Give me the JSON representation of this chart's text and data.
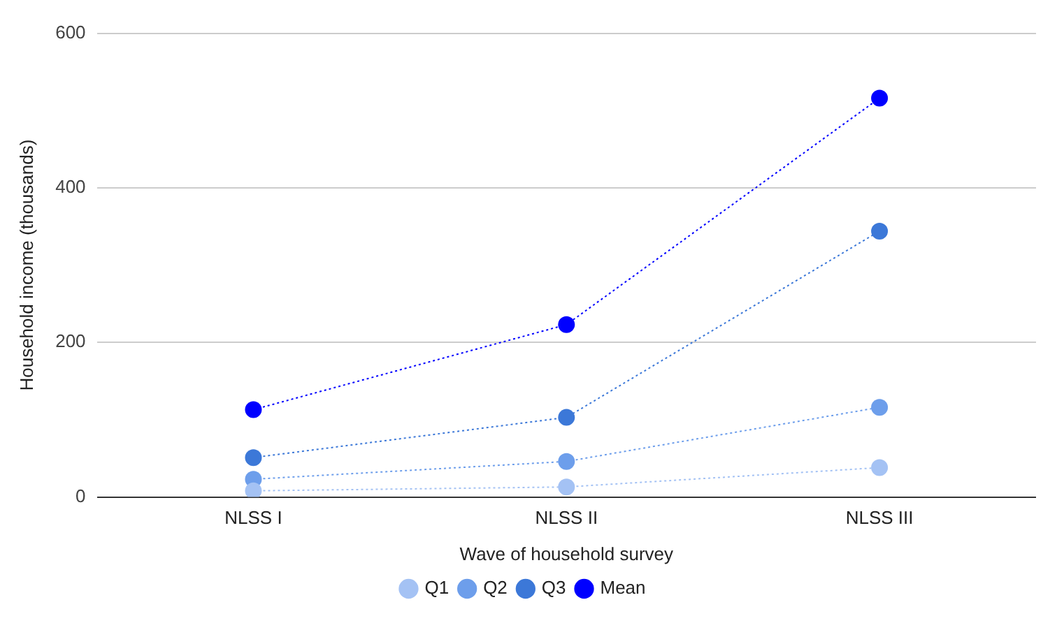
{
  "chart_data": {
    "type": "line",
    "xlabel": "Wave of household survey",
    "ylabel": "Household income (thousands)",
    "categories": [
      "NLSS I",
      "NLSS II",
      "NLSS III"
    ],
    "series": [
      {
        "name": "Q1",
        "color": "#a4c2f4",
        "values": [
          8,
          13,
          38
        ]
      },
      {
        "name": "Q2",
        "color": "#6d9eeb",
        "values": [
          23,
          46,
          116
        ]
      },
      {
        "name": "Q3",
        "color": "#3c78d8",
        "values": [
          51,
          103,
          344
        ]
      },
      {
        "name": "Mean",
        "color": "#0000ff",
        "values": [
          113,
          223,
          516
        ]
      }
    ],
    "ylim": [
      0,
      600
    ],
    "yticks": [
      0,
      200,
      400,
      600
    ],
    "grid": "y",
    "legend": "bottom",
    "marker": "circle",
    "line_style": "dotted"
  }
}
